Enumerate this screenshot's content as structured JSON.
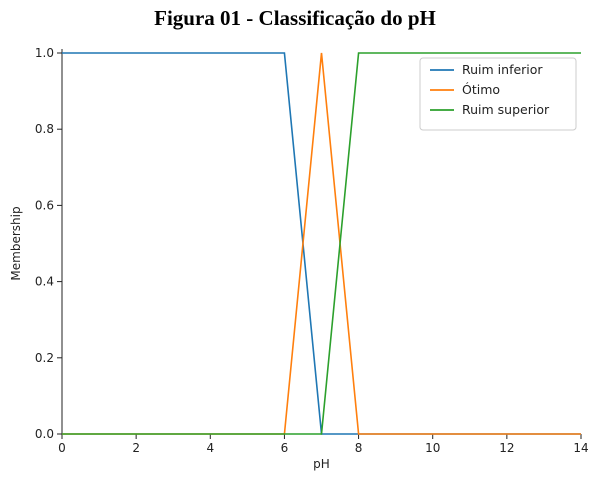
{
  "figure_title": "Figura 01 - Classificação do pH",
  "chart_data": {
    "type": "line",
    "xlabel": "pH",
    "ylabel": "Membership",
    "xlim": [
      0,
      14
    ],
    "ylim": [
      0,
      1
    ],
    "xticks": [
      0,
      2,
      4,
      6,
      8,
      10,
      12,
      14
    ],
    "xtick_labels": [
      "0",
      "2",
      "4",
      "6",
      "8",
      "10",
      "12",
      "14"
    ],
    "yticks": [
      0,
      0.2,
      0.4,
      0.6,
      0.8,
      1.0
    ],
    "ytick_labels": [
      "0.0",
      "0.2",
      "0.4",
      "0.6",
      "0.8",
      "1.0"
    ],
    "grid": false,
    "legend_position": "top-right",
    "series": [
      {
        "name": "Ruim inferior",
        "color": "#1f77b4",
        "x": [
          0,
          6,
          7,
          14
        ],
        "y": [
          1,
          1,
          0,
          0
        ]
      },
      {
        "name": "Ótimo",
        "color": "#ff7f0e",
        "x": [
          0,
          6,
          7,
          8,
          14
        ],
        "y": [
          0,
          0,
          1,
          0,
          0
        ]
      },
      {
        "name": "Ruim superior",
        "color": "#2ca02c",
        "x": [
          0,
          7,
          8,
          14
        ],
        "y": [
          0,
          0,
          1,
          1
        ]
      }
    ]
  }
}
